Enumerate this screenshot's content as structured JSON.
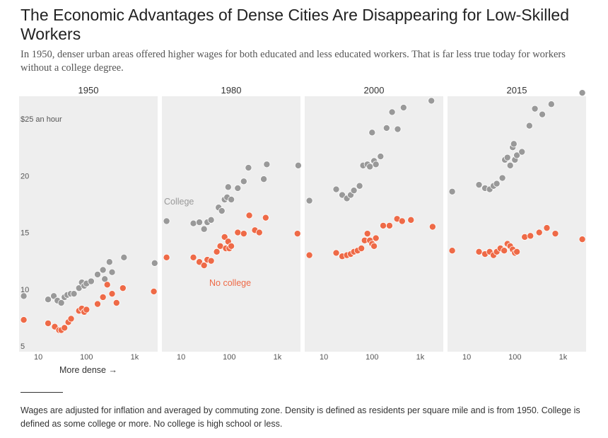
{
  "title": "The Economic Advantages of Dense Cities Are Disappearing for Low-Skilled Workers",
  "subtitle": "In 1950, denser urban areas offered higher wages for both educated and less educated workers. That is far less true today for workers without a college degree.",
  "footnote": "Wages are adjusted for inflation and averaged by commuting zone. Density is defined as residents per square mile and is from 1950. College is defined as some college or more. No college is high school or less.",
  "colors": {
    "college": "#999999",
    "no_college": "#ee6a47",
    "panel_bg": "#eeeeee"
  },
  "chart_data": {
    "type": "scatter",
    "x_scale": "log",
    "xlim": [
      4,
      3000
    ],
    "ylim": [
      4.5,
      27
    ],
    "x_ticks": [
      10,
      100,
      1000
    ],
    "x_tick_labels": [
      "10",
      "100",
      "1k"
    ],
    "y_ticks": [
      5,
      10,
      15,
      20,
      25
    ],
    "y_tick_labels": [
      "5",
      "10",
      "15",
      "20",
      "$25 an hour"
    ],
    "x_axis_note": "More dense →",
    "series_labels": {
      "college": "College",
      "no_college": "No college"
    },
    "grid": false,
    "panels": [
      {
        "title": "1950",
        "college": [
          [
            5,
            9.4
          ],
          [
            16,
            9.1
          ],
          [
            21,
            9.4
          ],
          [
            25,
            9.0
          ],
          [
            30,
            8.8
          ],
          [
            35,
            9.3
          ],
          [
            40,
            9.5
          ],
          [
            47,
            9.6
          ],
          [
            55,
            9.6
          ],
          [
            70,
            10.1
          ],
          [
            80,
            10.6
          ],
          [
            90,
            10.3
          ],
          [
            100,
            10.5
          ],
          [
            125,
            10.7
          ],
          [
            170,
            11.3
          ],
          [
            220,
            11.7
          ],
          [
            240,
            10.9
          ],
          [
            300,
            12.4
          ],
          [
            340,
            11.5
          ],
          [
            600,
            12.8
          ],
          [
            2600,
            12.3
          ]
        ],
        "no_college": [
          [
            5,
            7.3
          ],
          [
            16,
            7.0
          ],
          [
            22,
            6.7
          ],
          [
            27,
            6.4
          ],
          [
            30,
            6.4
          ],
          [
            35,
            6.6
          ],
          [
            42,
            7.1
          ],
          [
            48,
            7.4
          ],
          [
            70,
            8.1
          ],
          [
            80,
            8.3
          ],
          [
            90,
            8.0
          ],
          [
            100,
            8.2
          ],
          [
            170,
            8.7
          ],
          [
            220,
            9.3
          ],
          [
            270,
            10.4
          ],
          [
            340,
            9.6
          ],
          [
            420,
            8.8
          ],
          [
            570,
            10.1
          ],
          [
            2500,
            9.8
          ]
        ]
      },
      {
        "title": "1980",
        "college": [
          [
            5,
            16.0
          ],
          [
            18,
            15.8
          ],
          [
            24,
            15.9
          ],
          [
            30,
            15.3
          ],
          [
            35,
            15.9
          ],
          [
            42,
            16.1
          ],
          [
            60,
            17.2
          ],
          [
            70,
            16.9
          ],
          [
            80,
            17.9
          ],
          [
            90,
            18.1
          ],
          [
            95,
            19.0
          ],
          [
            110,
            17.9
          ],
          [
            150,
            18.9
          ],
          [
            200,
            19.5
          ],
          [
            250,
            20.7
          ],
          [
            520,
            19.7
          ],
          [
            600,
            21.0
          ],
          [
            2700,
            20.9
          ]
        ],
        "no_college": [
          [
            5,
            12.8
          ],
          [
            18,
            12.8
          ],
          [
            24,
            12.4
          ],
          [
            30,
            12.1
          ],
          [
            35,
            12.6
          ],
          [
            42,
            12.5
          ],
          [
            55,
            13.3
          ],
          [
            65,
            13.8
          ],
          [
            80,
            14.6
          ],
          [
            85,
            13.6
          ],
          [
            95,
            14.2
          ],
          [
            100,
            13.6
          ],
          [
            110,
            13.8
          ],
          [
            150,
            15.0
          ],
          [
            200,
            14.9
          ],
          [
            260,
            16.5
          ],
          [
            340,
            15.2
          ],
          [
            420,
            15.0
          ],
          [
            570,
            16.3
          ],
          [
            2600,
            14.9
          ]
        ]
      },
      {
        "title": "2000",
        "college": [
          [
            5,
            17.8
          ],
          [
            18,
            18.8
          ],
          [
            24,
            18.3
          ],
          [
            30,
            18.0
          ],
          [
            36,
            18.3
          ],
          [
            42,
            18.7
          ],
          [
            55,
            19.1
          ],
          [
            65,
            20.9
          ],
          [
            80,
            21.0
          ],
          [
            90,
            20.8
          ],
          [
            100,
            23.8
          ],
          [
            110,
            21.3
          ],
          [
            120,
            21.0
          ],
          [
            150,
            21.7
          ],
          [
            200,
            24.2
          ],
          [
            260,
            25.6
          ],
          [
            340,
            24.1
          ],
          [
            450,
            26.0
          ],
          [
            1700,
            26.6
          ]
        ],
        "no_college": [
          [
            5,
            13.0
          ],
          [
            18,
            13.2
          ],
          [
            24,
            12.9
          ],
          [
            30,
            13.0
          ],
          [
            36,
            13.1
          ],
          [
            42,
            13.3
          ],
          [
            50,
            13.4
          ],
          [
            60,
            13.6
          ],
          [
            70,
            14.3
          ],
          [
            80,
            14.9
          ],
          [
            90,
            14.3
          ],
          [
            100,
            14.0
          ],
          [
            110,
            13.8
          ],
          [
            120,
            14.5
          ],
          [
            170,
            15.6
          ],
          [
            230,
            15.6
          ],
          [
            330,
            16.2
          ],
          [
            420,
            16.0
          ],
          [
            640,
            16.1
          ],
          [
            1800,
            15.5
          ]
        ]
      },
      {
        "title": "2015",
        "college": [
          [
            5,
            18.6
          ],
          [
            18,
            19.2
          ],
          [
            24,
            18.9
          ],
          [
            30,
            18.8
          ],
          [
            36,
            19.1
          ],
          [
            42,
            19.3
          ],
          [
            55,
            19.8
          ],
          [
            62,
            21.4
          ],
          [
            70,
            21.6
          ],
          [
            80,
            20.9
          ],
          [
            90,
            22.5
          ],
          [
            95,
            22.8
          ],
          [
            100,
            21.4
          ],
          [
            110,
            21.8
          ],
          [
            140,
            22.1
          ],
          [
            200,
            24.4
          ],
          [
            260,
            25.9
          ],
          [
            370,
            25.4
          ],
          [
            570,
            26.3
          ],
          [
            2500,
            27.3
          ]
        ],
        "no_college": [
          [
            5,
            13.4
          ],
          [
            18,
            13.3
          ],
          [
            24,
            13.1
          ],
          [
            30,
            13.3
          ],
          [
            36,
            13.0
          ],
          [
            42,
            13.3
          ],
          [
            50,
            13.6
          ],
          [
            60,
            13.4
          ],
          [
            70,
            14.0
          ],
          [
            80,
            13.8
          ],
          [
            90,
            13.5
          ],
          [
            100,
            13.2
          ],
          [
            110,
            13.3
          ],
          [
            160,
            14.6
          ],
          [
            210,
            14.7
          ],
          [
            320,
            15.0
          ],
          [
            460,
            15.4
          ],
          [
            690,
            14.9
          ],
          [
            2500,
            14.4
          ]
        ]
      }
    ]
  }
}
